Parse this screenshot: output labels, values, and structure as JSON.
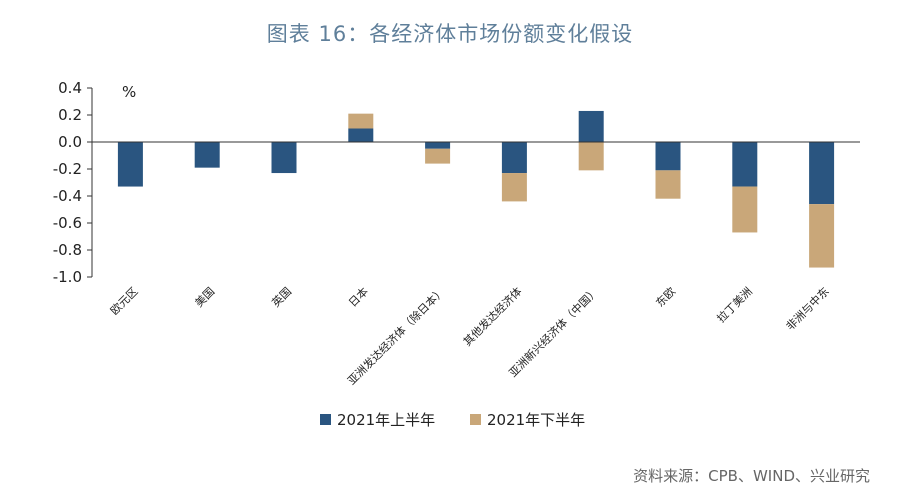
{
  "header": {
    "title": "图表 16：各经济体市场份额变化假设"
  },
  "footer": {
    "source": "资料来源：CPB、WIND、兴业研究"
  },
  "chart_data": {
    "type": "bar",
    "stacked": true,
    "unit_label": "%",
    "ylim": [
      -1.0,
      0.4
    ],
    "yticks": [
      0.4,
      0.2,
      0.0,
      -0.2,
      -0.4,
      -0.6,
      -0.8,
      -1.0
    ],
    "ytick_labels": [
      "0.4",
      "0.2",
      "0.0",
      "-0.2",
      "-0.4",
      "-0.6",
      "-0.8",
      "-1.0"
    ],
    "categories": [
      "欧元区",
      "美国",
      "英国",
      "日本",
      "亚洲发达经济体（除日本）",
      "其他发达经济体",
      "亚洲新兴经济体（中国）",
      "东欧",
      "拉丁美洲",
      "非洲与中东"
    ],
    "series": [
      {
        "name": "2021年上半年",
        "color": "#2a5580",
        "values": [
          -0.33,
          -0.19,
          -0.23,
          0.1,
          -0.05,
          -0.23,
          0.23,
          -0.21,
          -0.33,
          -0.46
        ]
      },
      {
        "name": "2021年下半年",
        "color": "#c9a779",
        "values": [
          0.0,
          0.0,
          0.0,
          0.11,
          -0.11,
          -0.21,
          -0.21,
          -0.21,
          -0.34,
          -0.47
        ]
      }
    ],
    "grid": false,
    "legend_position": "bottom-center"
  }
}
